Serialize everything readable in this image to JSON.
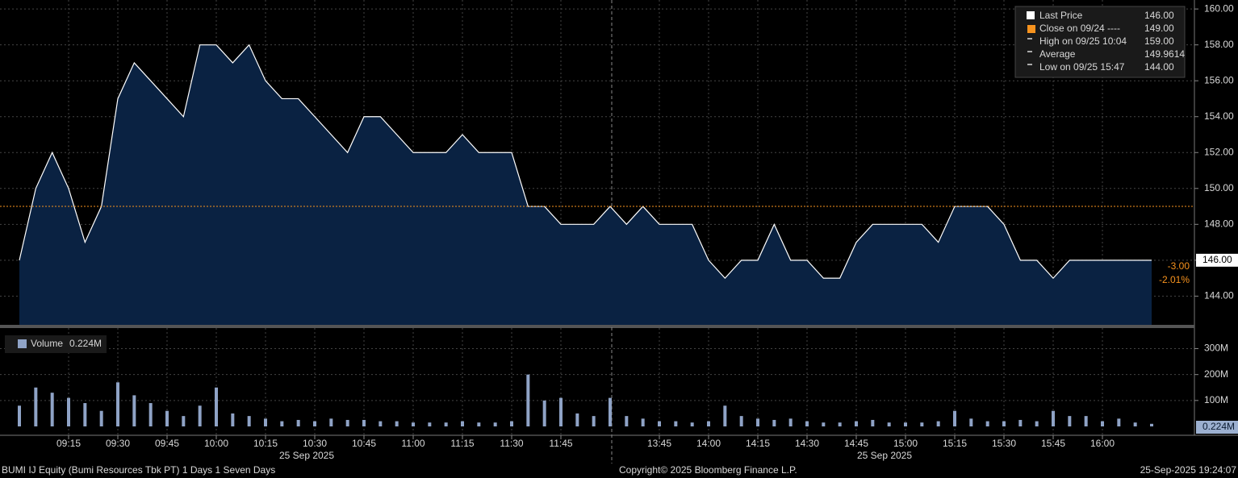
{
  "chart_data": [
    {
      "type": "area",
      "categories": [
        null,
        null,
        null,
        "09:15",
        null,
        null,
        "09:30",
        null,
        null,
        "09:45",
        null,
        null,
        "10:00",
        null,
        null,
        "10:15",
        null,
        null,
        "10:30",
        null,
        null,
        "10:45",
        null,
        null,
        "11:00",
        null,
        null,
        "11:15",
        null,
        null,
        "11:30",
        null,
        null,
        "11:45",
        null,
        null,
        null,
        null,
        null,
        "13:45",
        null,
        null,
        "14:00",
        null,
        null,
        "14:15",
        null,
        null,
        "14:30",
        null,
        null,
        "14:45",
        null,
        null,
        "15:00",
        null,
        null,
        "15:15",
        null,
        null,
        "15:30",
        null,
        null,
        "15:45",
        null,
        null,
        "16:00",
        null,
        null,
        null
      ],
      "series": [
        {
          "name": "Last Price",
          "color": "#ffffff",
          "fill": "#0a2242",
          "values": [
            146,
            150,
            152,
            150,
            147,
            149,
            155,
            157,
            156,
            155,
            154,
            158,
            158,
            157,
            158,
            156,
            155,
            155,
            154,
            153,
            152,
            154,
            154,
            153,
            152,
            152,
            152,
            153,
            152,
            152,
            152,
            149,
            149,
            148,
            148,
            148,
            149,
            148,
            149,
            148,
            148,
            148,
            146,
            145,
            146,
            146,
            148,
            146,
            146,
            145,
            145,
            147,
            148,
            148,
            148,
            148,
            147,
            149,
            149,
            149,
            148,
            146,
            146,
            145,
            146,
            146,
            146,
            146,
            146,
            146
          ]
        }
      ],
      "ylim": [
        142.4,
        160.5
      ],
      "yticks": [
        {
          "value": 144,
          "label": "144.00"
        },
        {
          "value": 146,
          "label": "146.00"
        },
        {
          "value": 148,
          "label": "148.00"
        },
        {
          "value": 150,
          "label": "150.00"
        },
        {
          "value": 152,
          "label": "152.00"
        },
        {
          "value": 154,
          "label": "154.00"
        },
        {
          "value": 156,
          "label": "156.00"
        },
        {
          "value": 158,
          "label": "158.00"
        },
        {
          "value": 160,
          "label": "160.00"
        }
      ],
      "grid": true,
      "close_line": {
        "value": 149,
        "color": "#f7931e"
      },
      "last_price_label": "146.00",
      "last_price_value": 146,
      "change_labels": [
        "-3.00",
        "-2.01%"
      ],
      "legend": [
        {
          "label": "Close on 09/24 ----",
          "value": "149.00",
          "color": "#f7931e"
        },
        {
          "label": "High on 09/25 10:04",
          "value": "159.00",
          "color": "#aaaaaa"
        },
        {
          "label": "Average",
          "value": "149.9614",
          "color": "#aaaaaa"
        },
        {
          "label": "Low on 09/25 15:47",
          "value": "144.00",
          "color": "#aaaaaa"
        }
      ],
      "date_labels": [
        "25 Sep 2025",
        "25 Sep 2025"
      ]
    },
    {
      "type": "bar",
      "series": [
        {
          "name": "Volume",
          "color": "#8fa3c6",
          "values": [
            80000000,
            150000000,
            130000000,
            110000000,
            90000000,
            60000000,
            170000000,
            120000000,
            90000000,
            60000000,
            40000000,
            80000000,
            150000000,
            50000000,
            40000000,
            30000000,
            20000000,
            25000000,
            20000000,
            30000000,
            25000000,
            25000000,
            20000000,
            20000000,
            15000000,
            15000000,
            15000000,
            20000000,
            15000000,
            15000000,
            20000000,
            200000000,
            100000000,
            110000000,
            50000000,
            40000000,
            110000000,
            40000000,
            30000000,
            20000000,
            20000000,
            15000000,
            20000000,
            80000000,
            40000000,
            30000000,
            25000000,
            30000000,
            20000000,
            15000000,
            15000000,
            20000000,
            25000000,
            15000000,
            15000000,
            15000000,
            20000000,
            60000000,
            30000000,
            20000000,
            20000000,
            25000000,
            20000000,
            60000000,
            40000000,
            40000000,
            20000000,
            30000000,
            15000000,
            10000000
          ]
        }
      ],
      "last_value_label": "0.224M",
      "ylim": [
        0,
        370000000
      ],
      "yticks": [
        {
          "value": 100000000,
          "label": "100M"
        },
        {
          "value": 200000000,
          "label": "200M"
        },
        {
          "value": 300000000,
          "label": "300M"
        }
      ],
      "grid": true
    }
  ],
  "footer": {
    "left": "BUMI IJ Equity (Bumi Resources Tbk PT) 1 Days 1 Seven Days",
    "center": "Copyright© 2025 Bloomberg Finance L.P.",
    "right": "25-Sep-2025 19:24:07"
  }
}
